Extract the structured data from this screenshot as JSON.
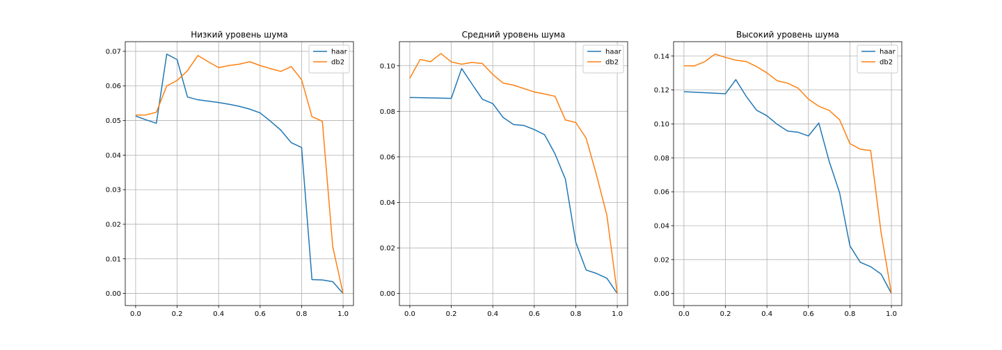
{
  "chart_data": [
    {
      "type": "line",
      "title": "Низкий уровень шума",
      "xlabel": "",
      "ylabel": "",
      "xlim": [
        -0.05,
        1.05
      ],
      "ylim": [
        -0.0035,
        0.0728
      ],
      "xticks": [
        "0.0",
        "0.2",
        "0.4",
        "0.6",
        "0.8",
        "1.0"
      ],
      "yticks": [
        "0.00",
        "0.01",
        "0.02",
        "0.03",
        "0.04",
        "0.05",
        "0.06",
        "0.07"
      ],
      "grid": true,
      "legend": "top-right",
      "x": [
        0.0,
        0.05,
        0.1,
        0.15,
        0.2,
        0.25,
        0.3,
        0.35,
        0.4,
        0.45,
        0.5,
        0.55,
        0.6,
        0.65,
        0.7,
        0.75,
        0.8,
        0.85,
        0.9,
        0.95,
        1.0
      ],
      "series": [
        {
          "name": "haar",
          "color": "#1f77b4",
          "values": [
            0.0513,
            0.0502,
            0.0492,
            0.0692,
            0.0676,
            0.0568,
            0.056,
            0.0556,
            0.0552,
            0.0547,
            0.0541,
            0.0533,
            0.0522,
            0.0498,
            0.0472,
            0.0436,
            0.0422,
            0.004,
            0.0039,
            0.0034,
            0.0
          ]
        },
        {
          "name": "db2",
          "color": "#ff7f0e",
          "values": [
            0.0516,
            0.0516,
            0.0524,
            0.06,
            0.0616,
            0.0644,
            0.0688,
            0.067,
            0.0653,
            0.0659,
            0.0663,
            0.067,
            0.0659,
            0.065,
            0.0642,
            0.0656,
            0.0618,
            0.0511,
            0.0498,
            0.0135,
            0.0
          ]
        }
      ]
    },
    {
      "type": "line",
      "title": "Средний уровень шума",
      "xlabel": "",
      "ylabel": "",
      "xlim": [
        -0.05,
        1.05
      ],
      "ylim": [
        -0.0053,
        0.1106
      ],
      "xticks": [
        "0.0",
        "0.2",
        "0.4",
        "0.6",
        "0.8",
        "1.0"
      ],
      "yticks": [
        "0.00",
        "0.02",
        "0.04",
        "0.06",
        "0.08",
        "0.10"
      ],
      "grid": true,
      "legend": "top-right",
      "x": [
        0.0,
        0.05,
        0.1,
        0.15,
        0.2,
        0.25,
        0.3,
        0.35,
        0.4,
        0.45,
        0.5,
        0.55,
        0.6,
        0.65,
        0.7,
        0.75,
        0.8,
        0.85,
        0.9,
        0.95,
        1.0
      ],
      "series": [
        {
          "name": "haar",
          "color": "#1f77b4",
          "values": [
            0.0861,
            0.086,
            0.0859,
            0.0858,
            0.0857,
            0.0988,
            0.092,
            0.0853,
            0.0834,
            0.0773,
            0.0742,
            0.0738,
            0.072,
            0.0697,
            0.0613,
            0.0502,
            0.0225,
            0.0103,
            0.0088,
            0.0067,
            0.0
          ]
        },
        {
          "name": "db2",
          "color": "#ff7f0e",
          "values": [
            0.0945,
            0.1028,
            0.1018,
            0.1054,
            0.1017,
            0.1007,
            0.1015,
            0.101,
            0.0962,
            0.0924,
            0.0915,
            0.09,
            0.0885,
            0.0876,
            0.0866,
            0.0762,
            0.0751,
            0.0682,
            0.052,
            0.0343,
            0.0
          ]
        }
      ]
    },
    {
      "type": "line",
      "title": "Высокий уровень шума",
      "xlabel": "",
      "ylabel": "",
      "xlim": [
        -0.05,
        1.05
      ],
      "ylim": [
        -0.0071,
        0.1485
      ],
      "xticks": [
        "0.0",
        "0.2",
        "0.4",
        "0.6",
        "0.8",
        "1.0"
      ],
      "yticks": [
        "0.00",
        "0.02",
        "0.04",
        "0.06",
        "0.08",
        "0.10",
        "0.12",
        "0.14"
      ],
      "grid": true,
      "legend": "top-right",
      "x": [
        0.0,
        0.05,
        0.1,
        0.15,
        0.2,
        0.25,
        0.3,
        0.35,
        0.4,
        0.45,
        0.5,
        0.55,
        0.6,
        0.65,
        0.7,
        0.75,
        0.8,
        0.85,
        0.9,
        0.95,
        1.0
      ],
      "series": [
        {
          "name": "haar",
          "color": "#1f77b4",
          "values": [
            0.119,
            0.1187,
            0.1184,
            0.1181,
            0.1178,
            0.1261,
            0.1163,
            0.1081,
            0.1048,
            0.0997,
            0.0958,
            0.0951,
            0.0929,
            0.1005,
            0.0779,
            0.0595,
            0.0281,
            0.0184,
            0.0158,
            0.0115,
            0.0
          ]
        },
        {
          "name": "db2",
          "color": "#ff7f0e",
          "values": [
            0.1343,
            0.1342,
            0.1367,
            0.1412,
            0.1392,
            0.1376,
            0.1368,
            0.1338,
            0.1301,
            0.1254,
            0.124,
            0.1211,
            0.1146,
            0.1104,
            0.108,
            0.1025,
            0.0884,
            0.0851,
            0.0843,
            0.0361,
            0.0
          ]
        }
      ]
    }
  ]
}
